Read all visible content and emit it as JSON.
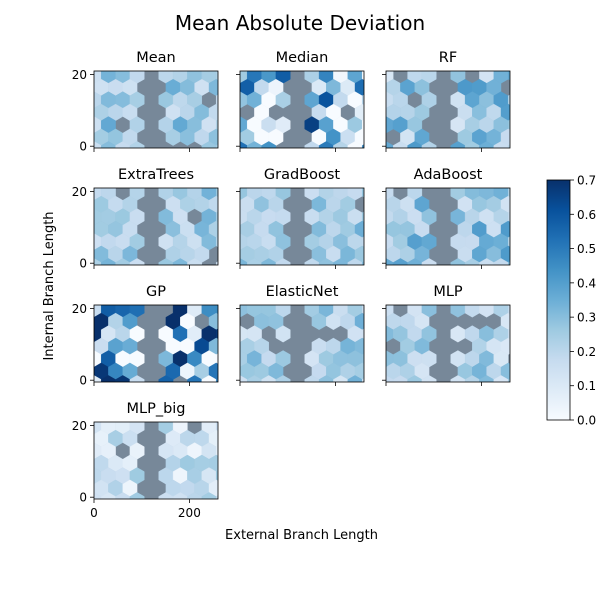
{
  "chart_data": {
    "type": "heatmap",
    "title": "Mean Absolute Deviation",
    "xlabel": "External Branch Length",
    "ylabel": "Internal Branch Length",
    "xlim": [
      0,
      260
    ],
    "ylim": [
      -0.5,
      21
    ],
    "x_ticks": [
      "0",
      "200"
    ],
    "y_ticks": [
      "0",
      "20"
    ],
    "colormap": "Blues",
    "background_color": "#778899",
    "colorbar": {
      "range": [
        0.0,
        0.7
      ],
      "ticks": [
        "0.0",
        "0.1",
        "0.2",
        "0.3",
        "0.4",
        "0.5",
        "0.6",
        "0.7"
      ]
    },
    "panels": [
      {
        "name": "Mean",
        "seed": 11,
        "base": 0.24,
        "spread": 0.12,
        "gray": 0.07
      },
      {
        "name": "Median",
        "seed": 23,
        "base": 0.2,
        "spread": 0.42,
        "gray": 0.05
      },
      {
        "name": "RF",
        "seed": 37,
        "base": 0.24,
        "spread": 0.16,
        "gray": 0.08
      },
      {
        "name": "ExtraTrees",
        "seed": 41,
        "base": 0.23,
        "spread": 0.1,
        "gray": 0.07
      },
      {
        "name": "GradBoost",
        "seed": 53,
        "base": 0.24,
        "spread": 0.1,
        "gray": 0.08
      },
      {
        "name": "AdaBoost",
        "seed": 67,
        "base": 0.26,
        "spread": 0.14,
        "gray": 0.06
      },
      {
        "name": "GP",
        "seed": 71,
        "base": 0.32,
        "spread": 0.5,
        "gray": 0.05
      },
      {
        "name": "ElasticNet",
        "seed": 83,
        "base": 0.22,
        "spread": 0.12,
        "gray": 0.06
      },
      {
        "name": "MLP",
        "seed": 97,
        "base": 0.2,
        "spread": 0.12,
        "gray": 0.05
      },
      {
        "name": "MLP_big",
        "seed": 101,
        "base": 0.14,
        "spread": 0.12,
        "gray": 0.07
      }
    ]
  }
}
